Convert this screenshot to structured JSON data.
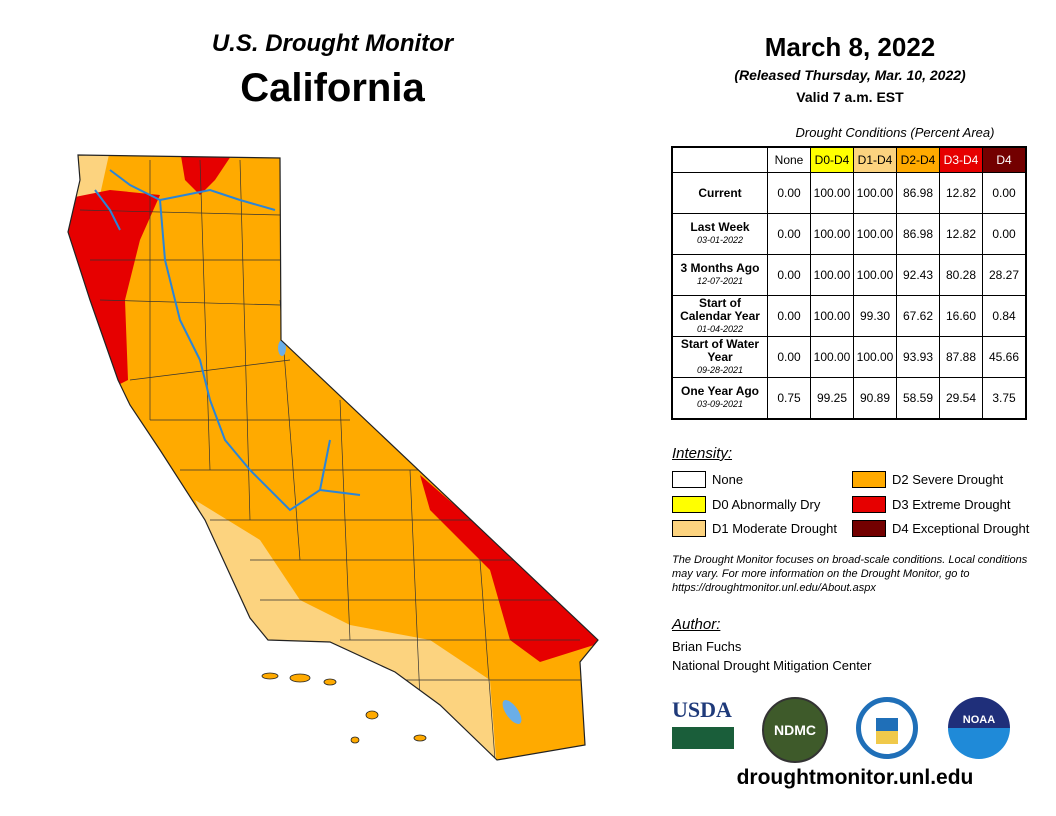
{
  "header": {
    "title": "U.S. Drought Monitor",
    "region": "California",
    "date": "March 8, 2022",
    "released": "(Released Thursday, Mar. 10, 2022)",
    "valid": "Valid 7 a.m. EST"
  },
  "table": {
    "caption": "Drought Conditions (Percent Area)",
    "columns": [
      {
        "label": "None",
        "color": "#ffffff",
        "text": "#000"
      },
      {
        "label": "D0-D4",
        "color": "#ffff00",
        "text": "#000"
      },
      {
        "label": "D1-D4",
        "color": "#fcd37f",
        "text": "#000"
      },
      {
        "label": "D2-D4",
        "color": "#ffaa00",
        "text": "#000"
      },
      {
        "label": "D3-D4",
        "color": "#e60000",
        "text": "#fff"
      },
      {
        "label": "D4",
        "color": "#730000",
        "text": "#fff"
      }
    ],
    "rows": [
      {
        "label": "Current",
        "date": "",
        "values": [
          "0.00",
          "100.00",
          "100.00",
          "86.98",
          "12.82",
          "0.00"
        ]
      },
      {
        "label": "Last Week",
        "date": "03-01-2022",
        "values": [
          "0.00",
          "100.00",
          "100.00",
          "86.98",
          "12.82",
          "0.00"
        ]
      },
      {
        "label": "3 Months Ago",
        "date": "12-07-2021",
        "values": [
          "0.00",
          "100.00",
          "100.00",
          "92.43",
          "80.28",
          "28.27"
        ]
      },
      {
        "label": "Start of Calendar Year",
        "date": "01-04-2022",
        "values": [
          "0.00",
          "100.00",
          "99.30",
          "67.62",
          "16.60",
          "0.84"
        ]
      },
      {
        "label": "Start of Water Year",
        "date": "09-28-2021",
        "values": [
          "0.00",
          "100.00",
          "100.00",
          "93.93",
          "87.88",
          "45.66"
        ]
      },
      {
        "label": "One Year Ago",
        "date": "03-09-2021",
        "values": [
          "0.75",
          "99.25",
          "90.89",
          "58.59",
          "29.54",
          "3.75"
        ]
      }
    ]
  },
  "legend": {
    "title": "Intensity:",
    "items": [
      {
        "label": "None",
        "color": "#ffffff"
      },
      {
        "label": "D0 Abnormally Dry",
        "color": "#ffff00"
      },
      {
        "label": "D1 Moderate Drought",
        "color": "#fcd37f"
      },
      {
        "label": "D2 Severe Drought",
        "color": "#ffaa00"
      },
      {
        "label": "D3 Extreme Drought",
        "color": "#e60000"
      },
      {
        "label": "D4 Exceptional Drought",
        "color": "#730000"
      }
    ]
  },
  "note": "The Drought Monitor focuses on broad-scale conditions. Local conditions may vary. For more information on the Drought Monitor, go to https://droughtmonitor.unl.edu/About.aspx",
  "author": {
    "title": "Author:",
    "name": "Brian Fuchs",
    "org": "National Drought Mitigation Center"
  },
  "logos": {
    "usda": "USDA",
    "ndmc": "NDMC",
    "noaa": "NOAA"
  },
  "url": "droughtmonitor.unl.edu"
}
